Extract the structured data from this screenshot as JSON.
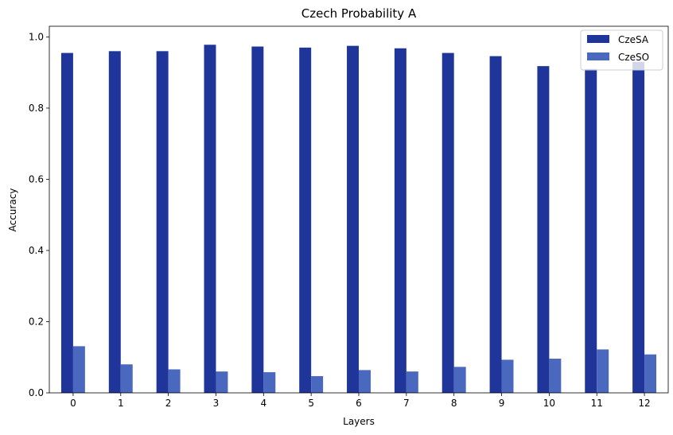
{
  "chart_data": {
    "type": "bar",
    "title": "Czech Probability A",
    "xlabel": "Layers",
    "ylabel": "Accuracy",
    "categories": [
      "0",
      "1",
      "2",
      "3",
      "4",
      "5",
      "6",
      "7",
      "8",
      "9",
      "10",
      "11",
      "12"
    ],
    "series": [
      {
        "name": "CzeSA",
        "color": "#1f3599",
        "values": [
          0.955,
          0.96,
          0.96,
          0.978,
          0.973,
          0.97,
          0.975,
          0.968,
          0.955,
          0.946,
          0.918,
          0.91,
          0.93
        ]
      },
      {
        "name": "CzeSO",
        "color": "#4a69be",
        "values": [
          0.131,
          0.08,
          0.066,
          0.06,
          0.058,
          0.047,
          0.064,
          0.06,
          0.073,
          0.093,
          0.096,
          0.122,
          0.108
        ]
      }
    ],
    "ylim": [
      0,
      1.03
    ],
    "yticks": [
      0.0,
      0.2,
      0.4,
      0.6,
      0.8,
      1.0
    ],
    "ytick_labels": [
      "0.0",
      "0.2",
      "0.4",
      "0.6",
      "0.8",
      "1.0"
    ],
    "grid": false,
    "legend_position": "top-right"
  }
}
